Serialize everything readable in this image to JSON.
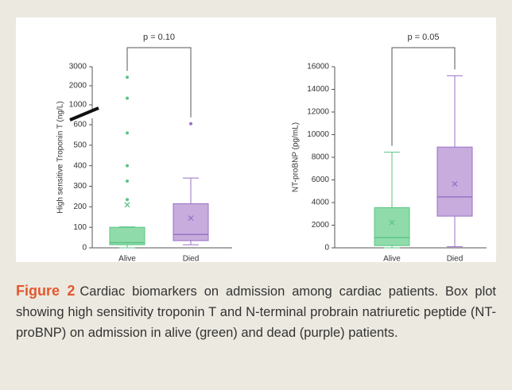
{
  "figure_label": "Figure 2",
  "caption": "Cardiac biomarkers on admission among cardiac patients. Box plot showing high sensitivity troponin T and N-terminal probrain natriuretic peptide (NT-proBNP) on admission in alive (green) and dead (purple) patients.",
  "chart_data": [
    {
      "type": "box",
      "ylabel": "High sensitive Troponin T (ng/L)",
      "annotation": "p = 0.10",
      "categories": [
        "Alive",
        "Died"
      ],
      "boxes": [
        {
          "min": 0,
          "q1": 15,
          "median": 25,
          "q3": 100,
          "max": 102,
          "mean": 210,
          "outliers": [
            2450,
            1350,
            560,
            400,
            325,
            235
          ],
          "color": "#8fdcaa",
          "stroke": "#5cc384"
        },
        {
          "min": 15,
          "q1": 35,
          "median": 65,
          "q3": 215,
          "max": 340,
          "mean": 145,
          "outliers": [
            620
          ],
          "color": "#c7acdd",
          "stroke": "#9a72c6"
        }
      ],
      "ylim": [
        0,
        3000
      ],
      "yticks": [
        0,
        100,
        200,
        300,
        400,
        500,
        600,
        1000,
        2000,
        3000
      ],
      "axis_break": [
        600,
        1000
      ]
    },
    {
      "type": "box",
      "ylabel": "NT-proBNP (pg/mL)",
      "annotation": "p = 0.05",
      "categories": [
        "Alive",
        "Died"
      ],
      "boxes": [
        {
          "min": 0,
          "q1": 200,
          "median": 900,
          "q3": 3550,
          "max": 8450,
          "mean": 2250,
          "outliers": [],
          "color": "#8fdcaa",
          "stroke": "#5cc384"
        },
        {
          "min": 100,
          "q1": 2800,
          "median": 4500,
          "q3": 8900,
          "max": 15200,
          "mean": 5650,
          "outliers": [],
          "color": "#c7acdd",
          "stroke": "#9a72c6"
        }
      ],
      "ylim": [
        0,
        16000
      ],
      "yticks": [
        0,
        2000,
        4000,
        6000,
        8000,
        10000,
        12000,
        14000,
        16000
      ]
    }
  ]
}
